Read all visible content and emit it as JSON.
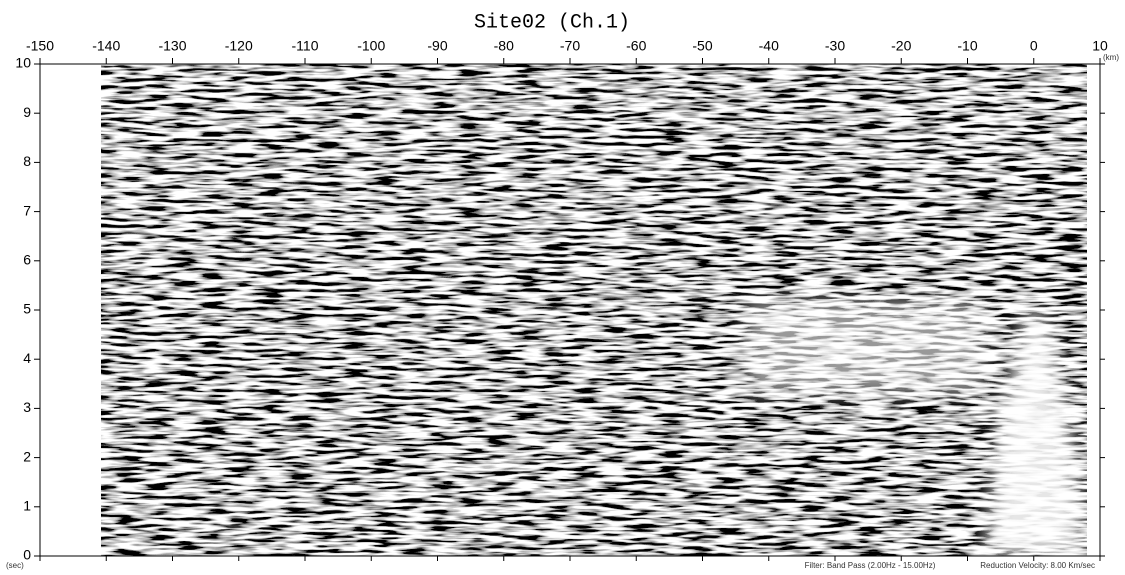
{
  "chart_data": {
    "type": "record-section",
    "title": "Site02 (Ch.1)",
    "x_unit": "(km)",
    "y_unit": "(sec)",
    "xlim": [
      -150,
      10
    ],
    "xticks": [
      -150,
      -140,
      -130,
      -120,
      -110,
      -100,
      -90,
      -80,
      -70,
      -60,
      -50,
      -40,
      -30,
      -20,
      -10,
      0,
      10
    ],
    "ylim": [
      0,
      10
    ],
    "yticks": [
      0,
      1,
      2,
      3,
      4,
      5,
      6,
      7,
      8,
      9,
      10
    ],
    "annotations": [
      "Filter: Band Pass (2.00Hz - 15.00Hz)",
      "Reduction Velocity: 8.00 Km/sec"
    ]
  }
}
